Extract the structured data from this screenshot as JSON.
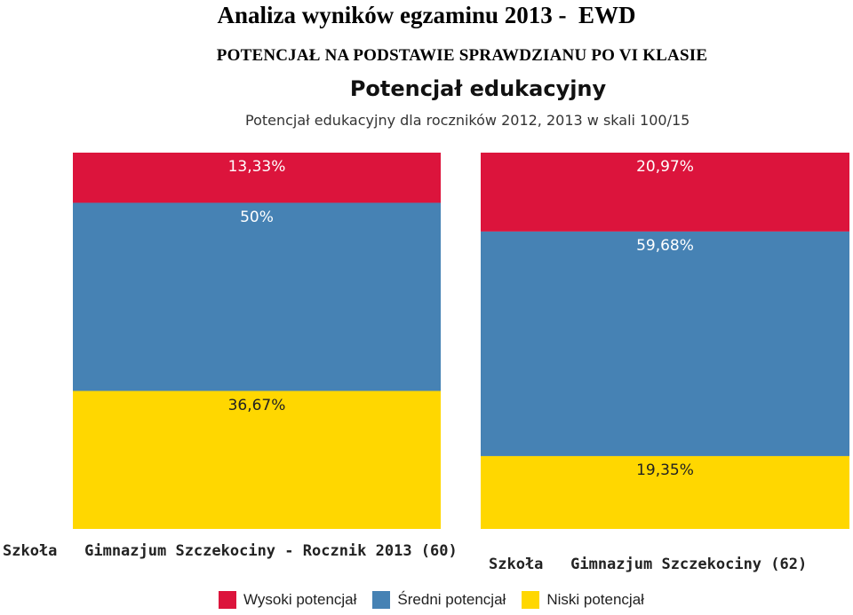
{
  "page": {
    "title": "Analiza wyników egzaminu 2013 -  EWD",
    "subtitle": "POTENCJAŁ NA PODSTAWIE SPRAWDZIANU PO VI KLASIE"
  },
  "colors": {
    "high": "#DC143C",
    "medium": "#4682B4",
    "low": "#FFD700"
  },
  "chart_data": {
    "type": "bar",
    "stacked": true,
    "title": "Potencjał edukacyjny",
    "subtitle": "Potencjał edukacyjny dla roczników 2012, 2013 w skali 100/15",
    "categories": [
      "Szkoła   Gimnazjum Szczekociny - Rocznik 2013 (60)",
      "Szkoła   Gimnazjum Szczekociny (62)"
    ],
    "series": [
      {
        "name": "Wysoki potencjał",
        "values": [
          13.33,
          20.97
        ],
        "labels": [
          "13,33%",
          "20,97%"
        ]
      },
      {
        "name": "Średni potencjał",
        "values": [
          50,
          59.68
        ],
        "labels": [
          "50%",
          "59,68%"
        ]
      },
      {
        "name": "Niski potencjał",
        "values": [
          36.67,
          19.35
        ],
        "labels": [
          "36,67%",
          "19,35%"
        ]
      }
    ],
    "ylim": [
      0,
      100
    ],
    "legend": "bottom"
  }
}
